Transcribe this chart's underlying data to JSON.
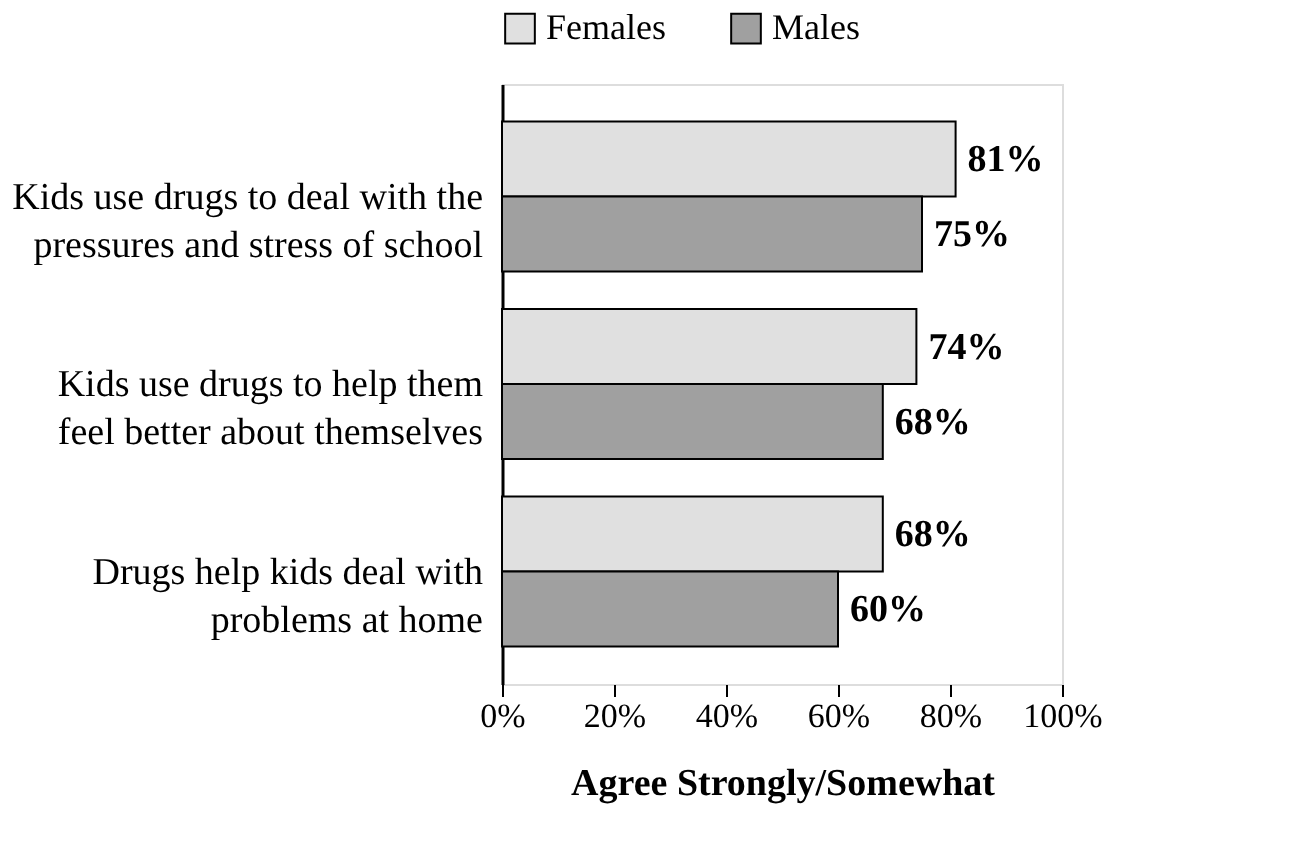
{
  "chart_data": {
    "type": "bar",
    "orientation": "horizontal",
    "xlabel": "Agree Strongly/Somewhat",
    "categories": [
      "Kids use drugs to deal with the\npressures and stress of school",
      "Kids use drugs to help them\nfeel better about themselves",
      "Drugs help kids deal with\nproblems at home"
    ],
    "series": [
      {
        "name": "Females",
        "color": "#e0e0e0",
        "values": [
          81,
          74,
          68
        ],
        "value_labels": [
          "81%",
          "74%",
          "68%"
        ]
      },
      {
        "name": "Males",
        "color": "#a0a0a0",
        "values": [
          75,
          68,
          60
        ],
        "value_labels": [
          "75%",
          "68%",
          "60%"
        ]
      }
    ],
    "xlim": [
      0,
      100
    ],
    "xticks": [
      {
        "value": 0,
        "label": "0%"
      },
      {
        "value": 20,
        "label": "20%"
      },
      {
        "value": 40,
        "label": "40%"
      },
      {
        "value": 60,
        "label": "60%"
      },
      {
        "value": 80,
        "label": "80%"
      },
      {
        "value": 100,
        "label": "100%"
      }
    ],
    "legend": "top",
    "grid": false
  }
}
